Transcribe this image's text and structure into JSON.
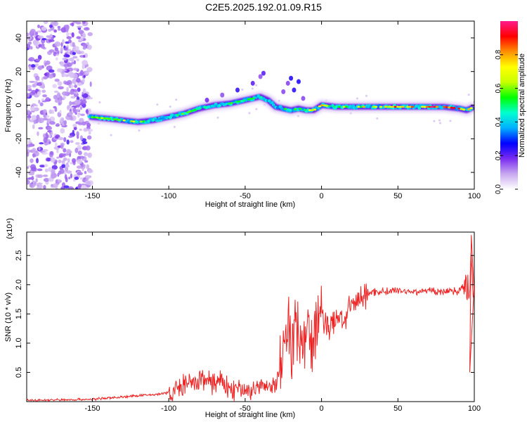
{
  "page_title": "C2E5.2025.192.01.09.R15",
  "chart_data": [
    {
      "type": "heatmap",
      "xlabel": "Height of straight line (km)",
      "ylabel": "Frequency (Hz)",
      "xlim": [
        -193,
        100
      ],
      "ylim": [
        -50,
        50
      ],
      "xticks": [
        -150,
        -100,
        -50,
        0,
        50,
        100
      ],
      "yticks": [
        -40,
        -20,
        0,
        20,
        40
      ],
      "grid": false,
      "colorbar": {
        "label": "Normalized spectral amplitude",
        "range": [
          0,
          1
        ],
        "ticks": [
          "0.0",
          "0.2",
          "0.4",
          "0.6",
          "0.8"
        ],
        "colors": [
          "#ffffff",
          "#c8a8f0",
          "#7a2cf0",
          "#0000ff",
          "#00b0ff",
          "#00ffd0",
          "#00ff00",
          "#c8ff00",
          "#ffff00",
          "#ff9000",
          "#ff0000",
          "#ff1a8c"
        ]
      },
      "ridge": {
        "x": [
          -152,
          -140,
          -130,
          -120,
          -110,
          -100,
          -90,
          -80,
          -70,
          -60,
          -50,
          -45,
          -40,
          -35,
          -30,
          -25,
          -20,
          -15,
          -10,
          -5,
          0,
          10,
          20,
          30,
          40,
          50,
          60,
          70,
          80,
          90,
          95,
          100
        ],
        "freq": [
          -7,
          -8,
          -9,
          -10,
          -9,
          -7,
          -5,
          -2,
          0,
          1,
          3,
          4,
          5,
          3,
          -1,
          -2,
          -3,
          -2,
          -3,
          -3,
          0,
          -1,
          -1,
          -1,
          -1,
          -1,
          -1,
          -1,
          -1,
          -2,
          -3,
          -1
        ],
        "amplitude": [
          0.55,
          0.6,
          0.65,
          0.6,
          0.45,
          0.4,
          0.55,
          0.45,
          0.45,
          0.5,
          0.5,
          0.5,
          0.5,
          0.45,
          0.5,
          0.5,
          0.6,
          0.5,
          0.7,
          0.7,
          0.7,
          0.6,
          0.65,
          0.7,
          0.75,
          0.8,
          0.85,
          0.9,
          0.9,
          0.85,
          0.75,
          0.6
        ]
      }
    },
    {
      "type": "line",
      "xlabel": "Height of straight line (km)",
      "ylabel": "SNR (10 * v/v)",
      "y_multiplier": "(x10⁴)",
      "xlim": [
        -193,
        100
      ],
      "ylim": [
        0,
        2.9
      ],
      "xticks": [
        -150,
        -100,
        -50,
        0,
        50,
        100
      ],
      "yticks": [
        "0.5",
        "1.0",
        "1.5",
        "2.0",
        "2.5"
      ],
      "grid": false,
      "series": [
        {
          "color": "#ee2222",
          "x": [
            -193,
            -170,
            -150,
            -130,
            -110,
            -100,
            -95,
            -90,
            -85,
            -80,
            -75,
            -70,
            -65,
            -60,
            -55,
            -50,
            -45,
            -40,
            -35,
            -30,
            -27,
            -25,
            -22,
            -20,
            -17,
            -15,
            -12,
            -10,
            -8,
            -5,
            -2,
            0,
            3,
            5,
            8,
            10,
            13,
            15,
            18,
            20,
            25,
            30,
            35,
            40,
            50,
            60,
            70,
            80,
            85,
            90,
            93,
            95,
            97,
            98,
            99,
            100
          ],
          "y": [
            0.02,
            0.03,
            0.04,
            0.08,
            0.12,
            0.15,
            0.2,
            0.3,
            0.28,
            0.35,
            0.4,
            0.3,
            0.35,
            0.2,
            0.22,
            0.18,
            0.2,
            0.25,
            0.25,
            0.25,
            0.6,
            1.1,
            1.3,
            1.0,
            1.3,
            1.2,
            1.1,
            1.3,
            1.2,
            1.0,
            1.4,
            1.5,
            1.35,
            1.25,
            1.3,
            1.45,
            1.45,
            1.4,
            1.55,
            1.65,
            1.75,
            1.85,
            1.88,
            1.88,
            1.9,
            1.88,
            1.9,
            1.88,
            1.9,
            1.9,
            1.95,
            2.0,
            1.9,
            2.8,
            1.85,
            1.82
          ]
        }
      ]
    }
  ]
}
